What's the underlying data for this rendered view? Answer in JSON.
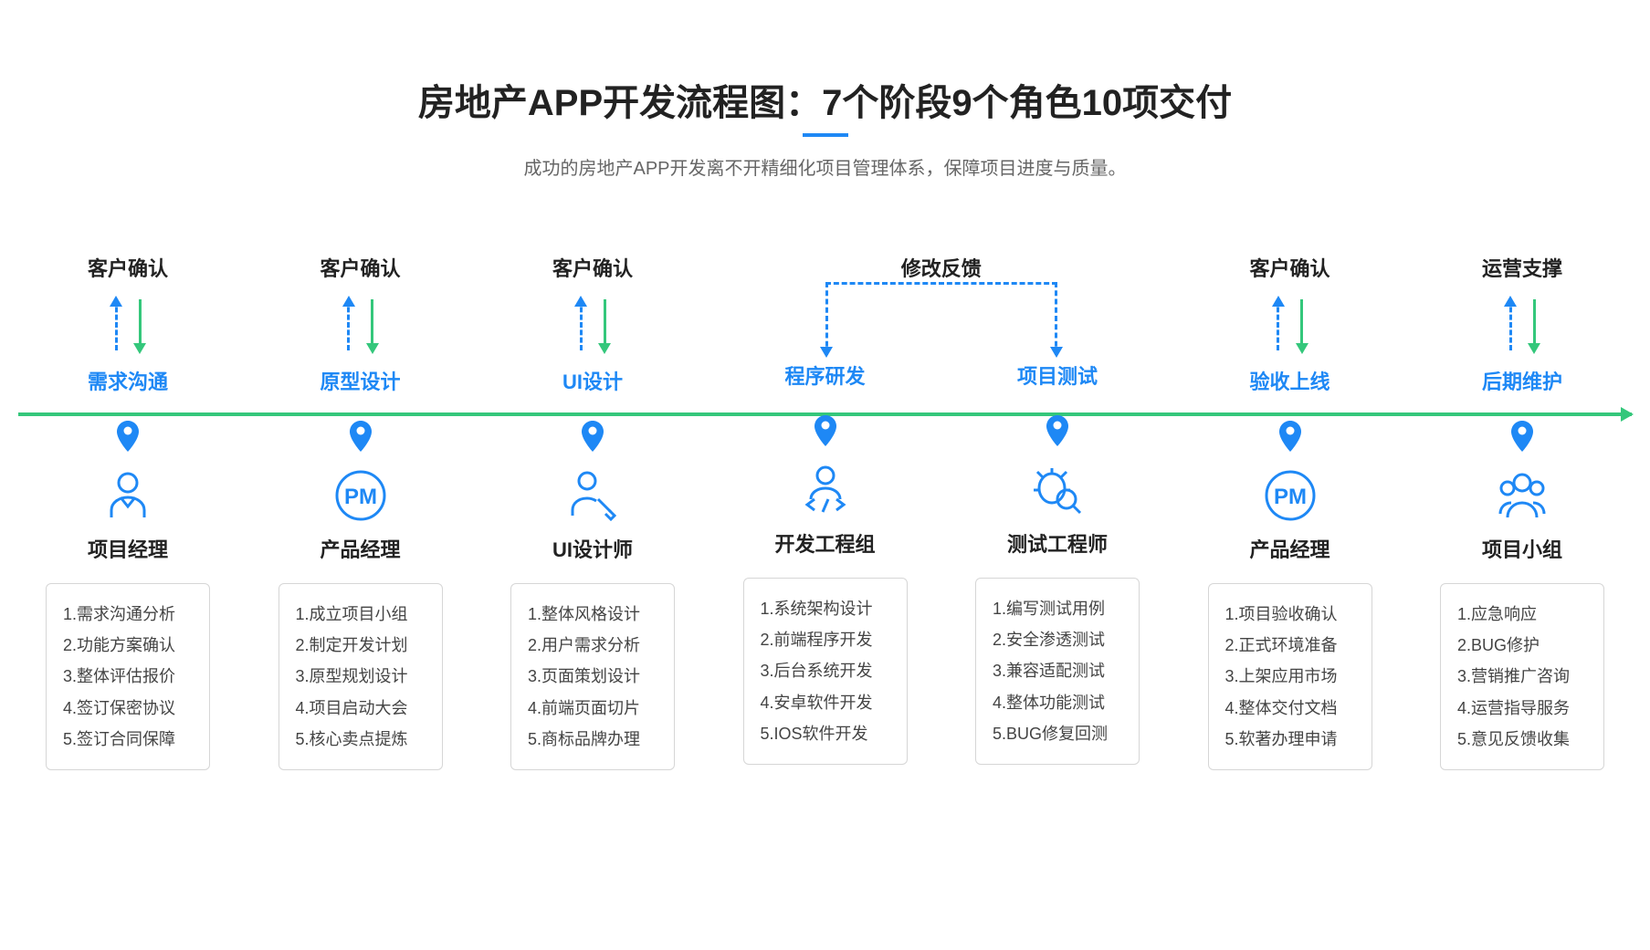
{
  "title": "房地产APP开发流程图：7个阶段9个角色10项交付",
  "subtitle": "成功的房地产APP开发离不开精细化项目管理体系，保障项目进度与质量。",
  "colors": {
    "blue": "#1e88f5",
    "green": "#34c77b",
    "text_dark": "#222222",
    "text_gray": "#666666",
    "border": "#d6d6d6",
    "background": "#ffffff"
  },
  "feedback": {
    "label": "修改反馈",
    "from_stage_index": 3,
    "to_stage_index": 4
  },
  "stages": [
    {
      "top_label": "客户确认",
      "name": "需求沟通",
      "role": "项目经理",
      "icon": "person",
      "tasks": [
        "1.需求沟通分析",
        "2.功能方案确认",
        "3.整体评估报价",
        "4.签订保密协议",
        "5.签订合同保障"
      ]
    },
    {
      "top_label": "客户确认",
      "name": "原型设计",
      "role": "产品经理",
      "icon": "pm",
      "tasks": [
        "1.成立项目小组",
        "2.制定开发计划",
        "3.原型规划设计",
        "4.项目启动大会",
        "5.核心卖点提炼"
      ]
    },
    {
      "top_label": "客户确认",
      "name": "UI设计",
      "role": "UI设计师",
      "icon": "designer",
      "tasks": [
        "1.整体风格设计",
        "2.用户需求分析",
        "3.页面策划设计",
        "4.前端页面切片",
        "5.商标品牌办理"
      ]
    },
    {
      "top_label": "",
      "name": "程序研发",
      "role": "开发工程组",
      "icon": "developer",
      "tasks": [
        "1.系统架构设计",
        "2.前端程序开发",
        "3.后台系统开发",
        "4.安卓软件开发",
        "5.IOS软件开发"
      ]
    },
    {
      "top_label": "",
      "name": "项目测试",
      "role": "测试工程师",
      "icon": "tester",
      "tasks": [
        "1.编写测试用例",
        "2.安全渗透测试",
        "3.兼容适配测试",
        "4.整体功能测试",
        "5.BUG修复回测"
      ]
    },
    {
      "top_label": "客户确认",
      "name": "验收上线",
      "role": "产品经理",
      "icon": "pm",
      "tasks": [
        "1.项目验收确认",
        "2.正式环境准备",
        "3.上架应用市场",
        "4.整体交付文档",
        "5.软著办理申请"
      ]
    },
    {
      "top_label": "运营支撑",
      "name": "后期维护",
      "role": "项目小组",
      "icon": "team",
      "tasks": [
        "1.应急响应",
        "2.BUG修护",
        "3.营销推广咨询",
        "4.运营指导服务",
        "5.意见反馈收集"
      ]
    }
  ]
}
